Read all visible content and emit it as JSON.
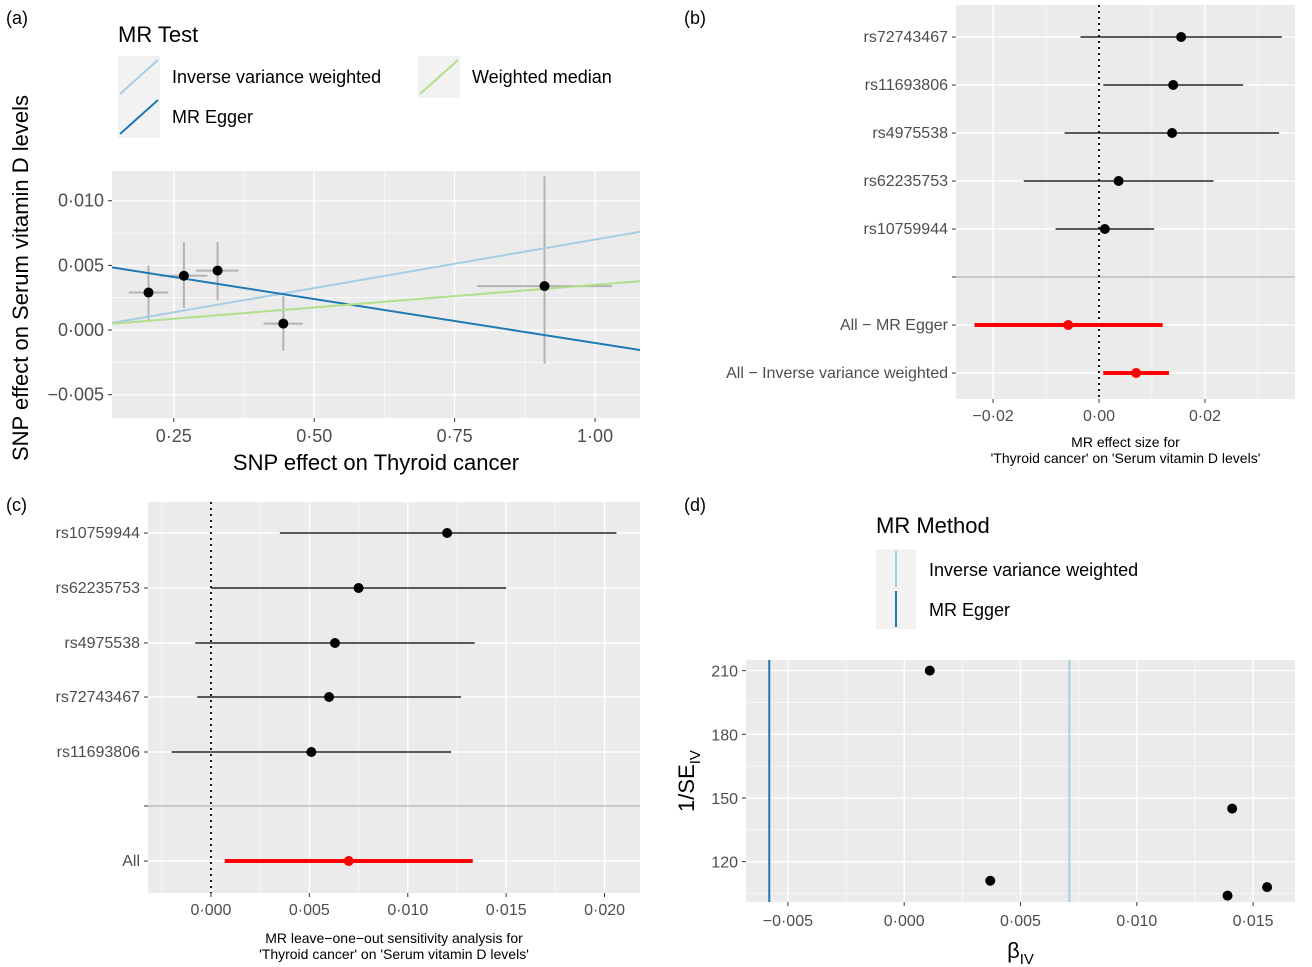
{
  "chart_data": [
    {
      "panel": "(a)",
      "type": "scatter",
      "xlabel": "SNP effect on Thyroid cancer",
      "ylabel": "SNP effect on Serum vitamin D levels",
      "xlim": [
        0.14,
        1.08
      ],
      "ylim": [
        -0.0068,
        0.0123
      ],
      "xticks": [
        0.25,
        0.5,
        0.75,
        1.0
      ],
      "xtick_labels": [
        "0·25",
        "0·50",
        "0·75",
        "1·00"
      ],
      "yticks": [
        -0.005,
        0.0,
        0.005,
        0.01
      ],
      "ytick_labels": [
        "−0·005",
        "0·000",
        "0·005",
        "0·010"
      ],
      "points": [
        {
          "x": 0.205,
          "y": 0.0029,
          "xlo": 0.17,
          "xhi": 0.24,
          "ylo": 0.0008,
          "yhi": 0.005
        },
        {
          "x": 0.268,
          "y": 0.0042,
          "xlo": 0.225,
          "xhi": 0.31,
          "ylo": 0.0017,
          "yhi": 0.0068
        },
        {
          "x": 0.328,
          "y": 0.0046,
          "xlo": 0.29,
          "xhi": 0.365,
          "ylo": 0.0023,
          "yhi": 0.0068
        },
        {
          "x": 0.445,
          "y": 0.0005,
          "xlo": 0.41,
          "xhi": 0.48,
          "ylo": -0.0016,
          "yhi": 0.0026
        },
        {
          "x": 0.91,
          "y": 0.0034,
          "xlo": 0.79,
          "xhi": 1.03,
          "ylo": -0.0026,
          "yhi": 0.0119
        }
      ],
      "legend": {
        "title": "MR Test",
        "entries": [
          {
            "name": "Inverse variance weighted",
            "color": "#a6cee3"
          },
          {
            "name": "Weighted median",
            "color": "#b2df8a"
          },
          {
            "name": "MR Egger",
            "color": "#1f78b4"
          }
        ]
      },
      "lines": [
        {
          "name": "Inverse variance weighted",
          "color": "#a6cee3",
          "intercept": -0.0005,
          "slope": 0.0075
        },
        {
          "name": "MR Egger",
          "color": "#1f78b4",
          "intercept": 0.0058,
          "slope": -0.0068
        },
        {
          "name": "Weighted median",
          "color": "#b2df8a",
          "intercept": 0.0,
          "slope": 0.0035
        }
      ]
    },
    {
      "panel": "(b)",
      "type": "forest",
      "xlabel": "MR effect size for\n'Thyroid cancer' on 'Serum vitamin D levels'",
      "xlim": [
        -0.027,
        0.037
      ],
      "xticks": [
        -0.02,
        0.0,
        0.02
      ],
      "xtick_labels": [
        "−0·02",
        "0·00",
        "0·02"
      ],
      "rows": [
        {
          "label": "rs72743467",
          "est": 0.0155,
          "lo": -0.0035,
          "hi": 0.0345,
          "color": "#000000"
        },
        {
          "label": "rs11693806",
          "est": 0.014,
          "lo": 0.0008,
          "hi": 0.0272,
          "color": "#000000"
        },
        {
          "label": "rs4975538",
          "est": 0.0138,
          "lo": -0.0065,
          "hi": 0.034,
          "color": "#000000"
        },
        {
          "label": "rs62235753",
          "est": 0.0037,
          "lo": -0.0142,
          "hi": 0.0216,
          "color": "#000000"
        },
        {
          "label": "rs10759944",
          "est": 0.0011,
          "lo": -0.0082,
          "hi": 0.0104,
          "color": "#000000"
        },
        {
          "label": "",
          "est": null,
          "lo": null,
          "hi": null,
          "color": "#000000"
        },
        {
          "label": "All − MR Egger",
          "est": -0.0058,
          "lo": -0.0235,
          "hi": 0.012,
          "color": "#ff0000"
        },
        {
          "label": "All − Inverse variance weighted",
          "est": 0.007,
          "lo": 0.0008,
          "hi": 0.0132,
          "color": "#ff0000"
        }
      ]
    },
    {
      "panel": "(c)",
      "type": "forest",
      "xlabel": "MR leave−one−out sensitivity analysis for\n'Thyroid cancer' on 'Serum vitamin D levels'",
      "xlim": [
        -0.0032,
        0.0218
      ],
      "xticks": [
        0.0,
        0.005,
        0.01,
        0.015,
        0.02
      ],
      "xtick_labels": [
        "0·000",
        "0·005",
        "0·010",
        "0·015",
        "0·020"
      ],
      "rows": [
        {
          "label": "rs10759944",
          "est": 0.012,
          "lo": 0.0035,
          "hi": 0.0206,
          "color": "#000000"
        },
        {
          "label": "rs62235753",
          "est": 0.0075,
          "lo": 0.0,
          "hi": 0.015,
          "color": "#000000"
        },
        {
          "label": "rs4975538",
          "est": 0.0063,
          "lo": -0.0008,
          "hi": 0.0134,
          "color": "#000000"
        },
        {
          "label": "rs72743467",
          "est": 0.006,
          "lo": -0.0007,
          "hi": 0.0127,
          "color": "#000000"
        },
        {
          "label": "rs11693806",
          "est": 0.0051,
          "lo": -0.002,
          "hi": 0.0122,
          "color": "#000000"
        },
        {
          "label": "",
          "est": null,
          "lo": null,
          "hi": null,
          "color": "#000000"
        },
        {
          "label": "All",
          "est": 0.007,
          "lo": 0.0007,
          "hi": 0.0133,
          "color": "#ff0000"
        }
      ]
    },
    {
      "panel": "(d)",
      "type": "scatter",
      "xlabel": "β",
      "xlabel_sub": "IV",
      "ylabel": "1/SE",
      "ylabel_sub": "IV",
      "xlim": [
        -0.0068,
        0.0168
      ],
      "ylim": [
        101,
        215
      ],
      "xticks": [
        -0.005,
        0.0,
        0.005,
        0.01,
        0.015
      ],
      "xtick_labels": [
        "−0·005",
        "0·000",
        "0·005",
        "0·010",
        "0·015"
      ],
      "yticks": [
        120,
        150,
        180,
        210
      ],
      "ytick_labels": [
        "120",
        "150",
        "180",
        "210"
      ],
      "points": [
        {
          "x": 0.0011,
          "y": 210
        },
        {
          "x": 0.0037,
          "y": 111
        },
        {
          "x": 0.0141,
          "y": 145
        },
        {
          "x": 0.0139,
          "y": 104
        },
        {
          "x": 0.0156,
          "y": 108
        }
      ],
      "vlines": [
        {
          "name": "Inverse variance weighted",
          "x": 0.0071,
          "color": "#a6cee3"
        },
        {
          "name": "MR Egger",
          "x": -0.0058,
          "color": "#1f78b4"
        }
      ],
      "legend": {
        "title": "MR Method",
        "entries": [
          {
            "name": "Inverse variance weighted",
            "color": "#a6cee3"
          },
          {
            "name": "MR Egger",
            "color": "#1f78b4"
          }
        ]
      }
    }
  ]
}
